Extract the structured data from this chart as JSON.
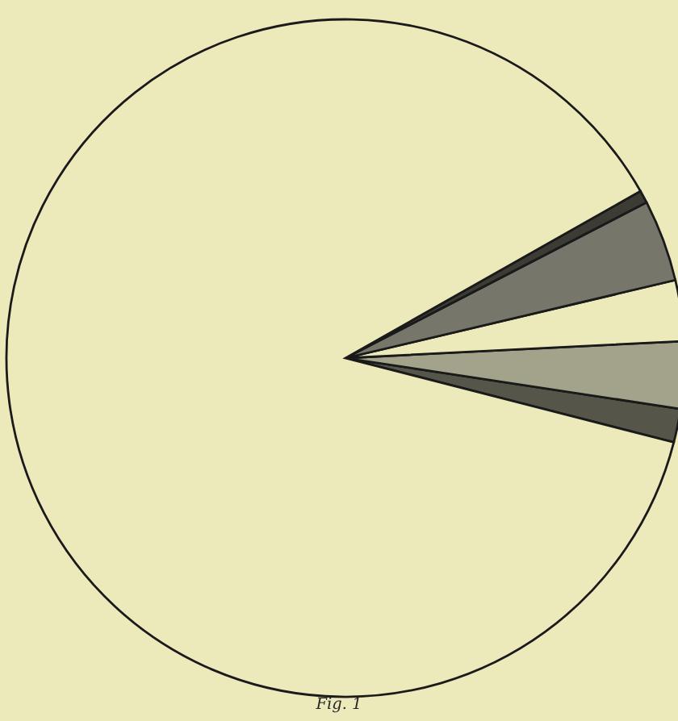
{
  "chart_data": {
    "type": "pie",
    "categories": [
      null,
      null,
      null,
      null,
      null,
      null
    ],
    "values": [
      1.6,
      3.2,
      2.9,
      3.9,
      0.6,
      87.8
    ],
    "colors": [
      "#55554a",
      "#a3a28a",
      "#ece9bb",
      "#76766a",
      "#3c3c34",
      "#ece9bb"
    ],
    "annotations": [
      "Fig. 1"
    ]
  }
}
